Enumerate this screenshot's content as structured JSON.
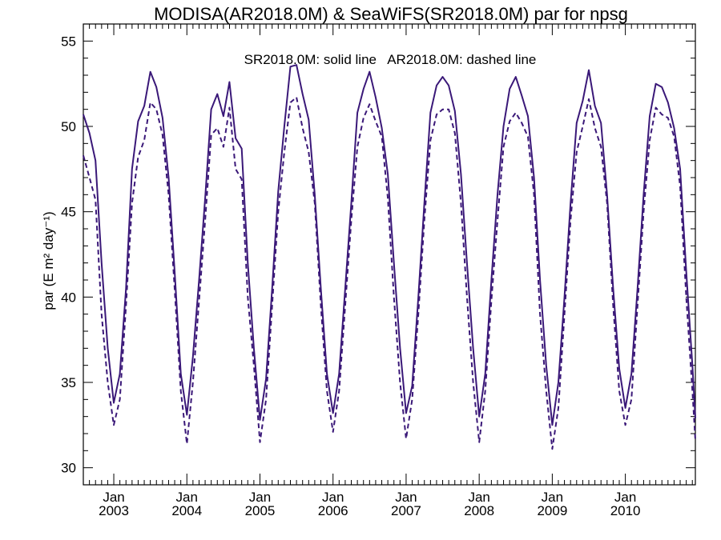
{
  "chart_data": {
    "type": "line",
    "title": "MODISA(AR2018.0M) & SeaWiFS(SR2018.0M)  par for npsg",
    "xlabel": "",
    "ylabel": "par (E m² day⁻¹)",
    "annotation": "SR2018.0M: solid line   AR2018.0M: dashed line",
    "xlim": [
      2002.583,
      2010.958
    ],
    "ylim": [
      29,
      56
    ],
    "y_ticks": [
      30,
      35,
      40,
      45,
      50,
      55
    ],
    "x_ticks": [
      {
        "x": 2003,
        "month": "Jan",
        "year": "2003"
      },
      {
        "x": 2004,
        "month": "Jan",
        "year": "2004"
      },
      {
        "x": 2005,
        "month": "Jan",
        "year": "2005"
      },
      {
        "x": 2006,
        "month": "Jan",
        "year": "2006"
      },
      {
        "x": 2007,
        "month": "Jan",
        "year": "2007"
      },
      {
        "x": 2008,
        "month": "Jan",
        "year": "2008"
      },
      {
        "x": 2009,
        "month": "Jan",
        "year": "2009"
      },
      {
        "x": 2010,
        "month": "Jan",
        "year": "2010"
      }
    ],
    "grid": false,
    "line_color": "#3a1878",
    "x": [
      2002.583,
      2002.667,
      2002.75,
      2002.833,
      2002.917,
      2003.0,
      2003.083,
      2003.167,
      2003.25,
      2003.333,
      2003.417,
      2003.5,
      2003.583,
      2003.667,
      2003.75,
      2003.833,
      2003.917,
      2004.0,
      2004.083,
      2004.167,
      2004.25,
      2004.333,
      2004.417,
      2004.5,
      2004.583,
      2004.667,
      2004.75,
      2004.833,
      2004.917,
      2005.0,
      2005.083,
      2005.167,
      2005.25,
      2005.333,
      2005.417,
      2005.5,
      2005.583,
      2005.667,
      2005.75,
      2005.833,
      2005.917,
      2006.0,
      2006.083,
      2006.167,
      2006.25,
      2006.333,
      2006.417,
      2006.5,
      2006.583,
      2006.667,
      2006.75,
      2006.833,
      2006.917,
      2007.0,
      2007.083,
      2007.167,
      2007.25,
      2007.333,
      2007.417,
      2007.5,
      2007.583,
      2007.667,
      2007.75,
      2007.833,
      2007.917,
      2008.0,
      2008.083,
      2008.167,
      2008.25,
      2008.333,
      2008.417,
      2008.5,
      2008.583,
      2008.667,
      2008.75,
      2008.833,
      2008.917,
      2009.0,
      2009.083,
      2009.167,
      2009.25,
      2009.333,
      2009.417,
      2009.5,
      2009.583,
      2009.667,
      2009.75,
      2009.833,
      2009.917,
      2010.0,
      2010.083,
      2010.167,
      2010.25,
      2010.333,
      2010.417,
      2010.5,
      2010.583,
      2010.667,
      2010.75,
      2010.833,
      2010.917,
      2010.958
    ],
    "series": [
      {
        "name": "SR2018.0M",
        "style": "solid",
        "values": [
          50.7,
          49.6,
          48.0,
          42.0,
          37.0,
          33.8,
          35.5,
          40.5,
          47.5,
          50.3,
          51.2,
          53.2,
          52.3,
          50.5,
          47.0,
          41.5,
          35.5,
          33.1,
          36.5,
          41.0,
          45.8,
          51.0,
          51.9,
          50.6,
          52.6,
          49.3,
          48.7,
          42.0,
          37.0,
          32.8,
          35.2,
          40.5,
          46.2,
          50.0,
          53.5,
          53.6,
          51.9,
          50.4,
          46.0,
          40.5,
          35.5,
          33.2,
          35.5,
          40.5,
          45.5,
          50.8,
          52.2,
          53.2,
          51.7,
          49.9,
          47.2,
          42.0,
          37.0,
          33.2,
          34.8,
          40.0,
          45.5,
          50.8,
          52.4,
          52.9,
          52.4,
          50.9,
          47.2,
          42.0,
          37.0,
          33.0,
          35.5,
          41.0,
          46.0,
          50.0,
          52.2,
          52.9,
          51.8,
          50.6,
          47.0,
          41.0,
          36.0,
          32.5,
          35.0,
          40.0,
          45.5,
          50.2,
          51.5,
          53.3,
          51.2,
          50.2,
          46.0,
          40.5,
          35.8,
          33.5,
          35.5,
          40.5,
          46.0,
          50.6,
          52.5,
          52.3,
          51.4,
          49.9,
          47.5,
          41.5,
          36.0,
          32.9
        ]
      },
      {
        "name": "AR2018.0M",
        "style": "dashed",
        "values": [
          48.3,
          47.0,
          45.7,
          39.0,
          35.0,
          32.5,
          34.0,
          39.5,
          45.5,
          48.2,
          49.2,
          51.4,
          51.0,
          49.5,
          46.0,
          40.5,
          34.5,
          31.4,
          35.0,
          39.8,
          44.5,
          49.5,
          49.9,
          48.8,
          51.1,
          47.5,
          46.9,
          40.0,
          36.0,
          31.5,
          34.0,
          39.5,
          45.0,
          48.5,
          51.4,
          51.7,
          49.9,
          48.5,
          45.5,
          39.5,
          34.5,
          32.1,
          34.5,
          39.5,
          44.5,
          48.8,
          50.5,
          51.3,
          50.3,
          49.4,
          45.8,
          40.0,
          35.0,
          31.7,
          34.0,
          39.0,
          44.5,
          49.2,
          50.7,
          51.0,
          51.0,
          49.6,
          45.5,
          40.0,
          35.0,
          31.5,
          34.5,
          39.8,
          44.5,
          48.8,
          50.3,
          50.8,
          50.2,
          49.4,
          46.0,
          39.0,
          34.5,
          31.1,
          33.5,
          39.0,
          44.5,
          48.5,
          50.0,
          51.6,
          49.9,
          48.8,
          45.5,
          39.5,
          34.5,
          32.5,
          34.0,
          39.5,
          45.0,
          49.2,
          51.1,
          50.7,
          50.5,
          49.4,
          46.5,
          40.0,
          34.5,
          31.6
        ]
      }
    ]
  }
}
